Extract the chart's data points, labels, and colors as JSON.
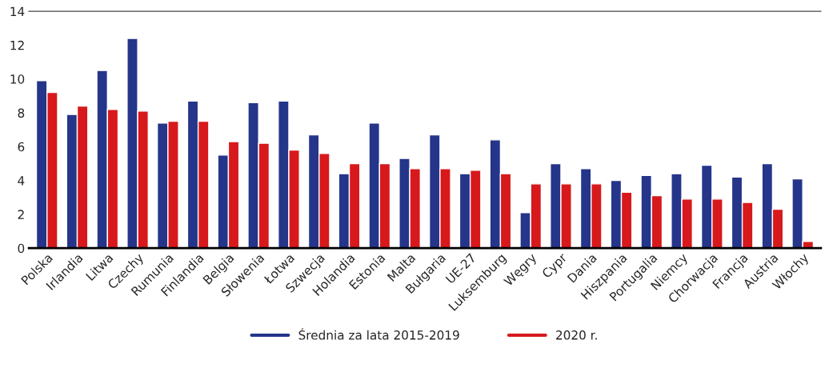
{
  "chart_data": {
    "type": "bar",
    "categories": [
      "Polska",
      "Irlandia",
      "Litwa",
      "Czechy",
      "Rumunia",
      "Finlandia",
      "Belgia",
      "Słowenia",
      "Łotwa",
      "Szwecja",
      "Holandia",
      "Estonia",
      "Malta",
      "Bułgaria",
      "UE-27",
      "Luksemburg",
      "Węgry",
      "Cypr",
      "Dania",
      "Hiszpania",
      "Portugalia",
      "Niemcy",
      "Chorwacja",
      "Francja",
      "Austria",
      "Włochy"
    ],
    "series": [
      {
        "name": "Średnia za lata 2015-2019",
        "color": "#25358a",
        "values": [
          9.9,
          7.9,
          10.5,
          12.4,
          7.4,
          8.7,
          5.5,
          8.6,
          8.7,
          6.7,
          4.4,
          7.4,
          5.3,
          6.7,
          4.4,
          6.4,
          2.1,
          5.0,
          4.7,
          4.0,
          4.3,
          4.4,
          4.9,
          4.2,
          5.0,
          4.1
        ]
      },
      {
        "name": "2020 r.",
        "color": "#d7191c",
        "values": [
          9.2,
          8.4,
          8.2,
          8.1,
          7.5,
          7.5,
          6.3,
          6.2,
          5.8,
          5.6,
          5.0,
          5.0,
          4.7,
          4.7,
          4.6,
          4.4,
          3.8,
          3.8,
          3.8,
          3.3,
          3.1,
          2.9,
          2.9,
          2.7,
          2.3,
          0.4
        ]
      }
    ],
    "ylim": [
      0,
      14
    ],
    "yticks": [
      0,
      2,
      4,
      6,
      8,
      10,
      12,
      14
    ],
    "grid": false,
    "legend": "bottom"
  }
}
